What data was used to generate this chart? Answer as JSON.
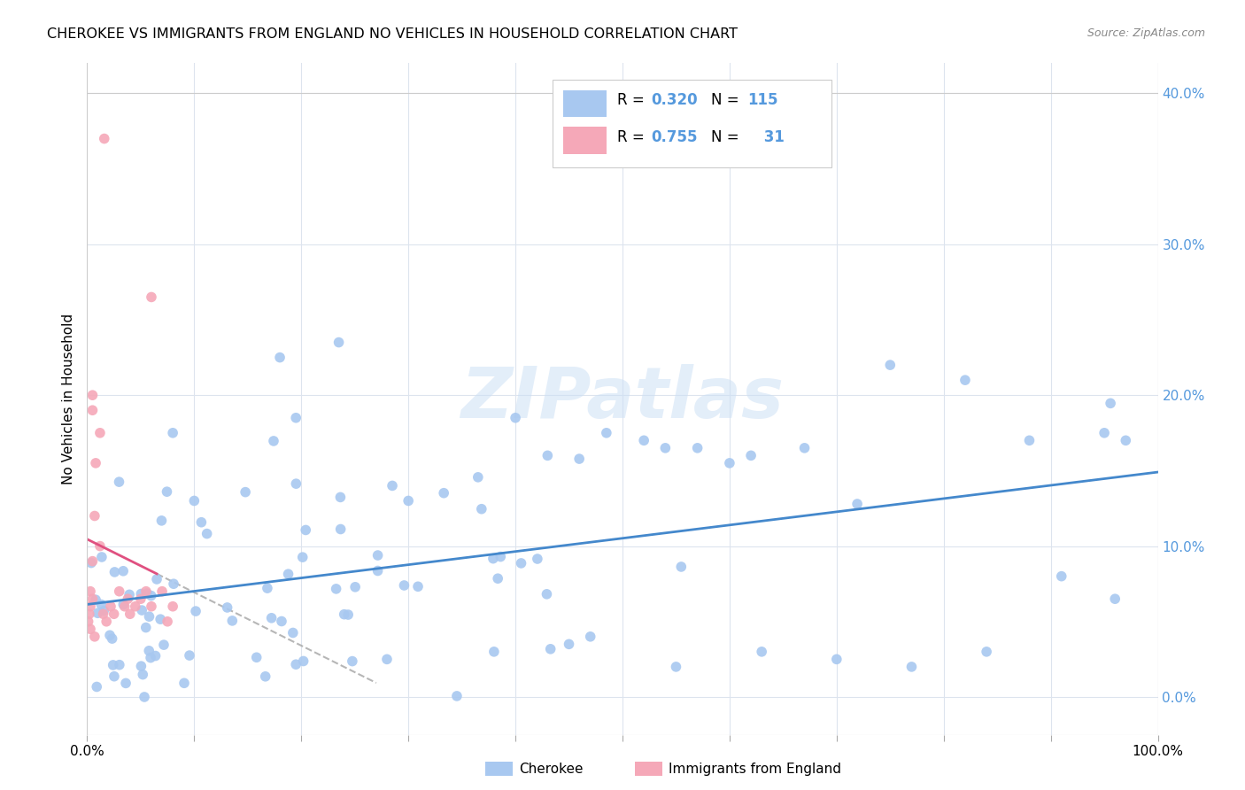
{
  "title": "CHEROKEE VS IMMIGRANTS FROM ENGLAND NO VEHICLES IN HOUSEHOLD CORRELATION CHART",
  "source": "Source: ZipAtlas.com",
  "ylabel": "No Vehicles in Household",
  "watermark": "ZIPatlas",
  "xlim": [
    0,
    1.0
  ],
  "ylim": [
    -0.025,
    0.42
  ],
  "cherokee_R": 0.32,
  "cherokee_N": 115,
  "england_R": 0.755,
  "england_N": 31,
  "cherokee_color": "#a8c8f0",
  "england_color": "#f5a8b8",
  "cherokee_line_color": "#4488cc",
  "england_line_color": "#e05080",
  "value_color": "#5599dd",
  "grid_color": "#dde4ee",
  "tick_color": "#aaaaaa"
}
